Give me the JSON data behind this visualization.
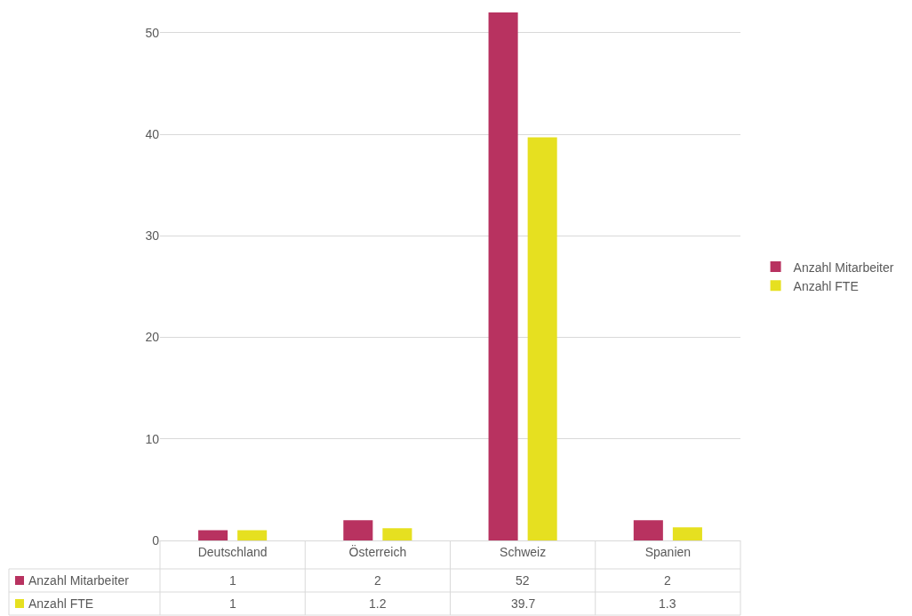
{
  "chart_data": {
    "type": "bar",
    "categories": [
      "Deutschland",
      "Österreich",
      "Schweiz",
      "Spanien"
    ],
    "series": [
      {
        "name": "Anzahl Mitarbeiter",
        "color": "#b83260",
        "values": [
          1,
          2,
          52,
          2
        ]
      },
      {
        "name": "Anzahl FTE",
        "color": "#e6e020",
        "values": [
          1,
          1.2,
          39.7,
          1.3
        ]
      }
    ],
    "ylim": [
      0,
      52
    ],
    "yticks": [
      0,
      10,
      20,
      30,
      40,
      50
    ],
    "grid": "y",
    "legend": "right",
    "data_labels": true
  }
}
